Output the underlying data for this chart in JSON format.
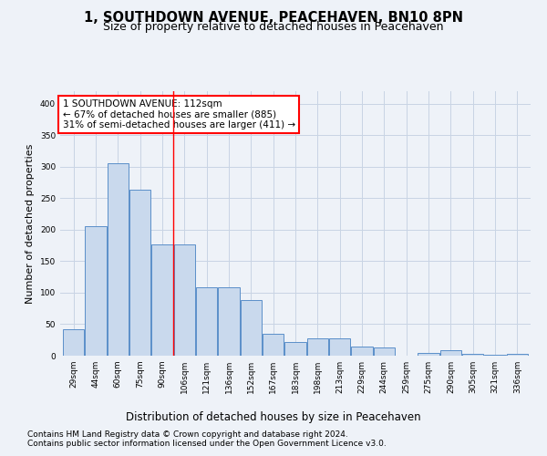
{
  "title": "1, SOUTHDOWN AVENUE, PEACEHAVEN, BN10 8PN",
  "subtitle": "Size of property relative to detached houses in Peacehaven",
  "xlabel": "Distribution of detached houses by size in Peacehaven",
  "ylabel": "Number of detached properties",
  "bar_labels": [
    "29sqm",
    "44sqm",
    "60sqm",
    "75sqm",
    "90sqm",
    "106sqm",
    "121sqm",
    "136sqm",
    "152sqm",
    "167sqm",
    "183sqm",
    "198sqm",
    "213sqm",
    "229sqm",
    "244sqm",
    "259sqm",
    "275sqm",
    "290sqm",
    "305sqm",
    "321sqm",
    "336sqm"
  ],
  "bar_values": [
    42,
    205,
    305,
    263,
    177,
    177,
    108,
    108,
    88,
    35,
    22,
    28,
    28,
    15,
    13,
    0,
    5,
    8,
    3,
    1,
    3
  ],
  "bar_color": "#c9d9ed",
  "bar_edge_color": "#5b8fc9",
  "grid_color": "#c8d4e4",
  "background_color": "#eef2f8",
  "vline_x_index": 4.5,
  "vline_color": "red",
  "annotation_text": "1 SOUTHDOWN AVENUE: 112sqm\n← 67% of detached houses are smaller (885)\n31% of semi-detached houses are larger (411) →",
  "annotation_box_color": "white",
  "annotation_box_edge_color": "red",
  "footer_line1": "Contains HM Land Registry data © Crown copyright and database right 2024.",
  "footer_line2": "Contains public sector information licensed under the Open Government Licence v3.0.",
  "ylim": [
    0,
    420
  ],
  "title_fontsize": 10.5,
  "subtitle_fontsize": 9,
  "xlabel_fontsize": 8.5,
  "ylabel_fontsize": 8,
  "tick_fontsize": 6.5,
  "annotation_fontsize": 7.5,
  "footer_fontsize": 6.5
}
